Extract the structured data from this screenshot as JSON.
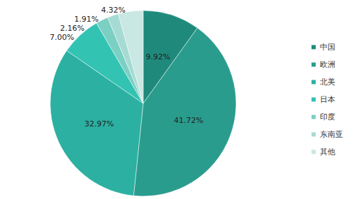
{
  "chart_data": {
    "type": "pie",
    "categories": [
      "中国",
      "欧洲",
      "北美",
      "日本",
      "印度",
      "东南亚",
      "其他"
    ],
    "values": [
      9.92,
      41.72,
      32.97,
      7.0,
      2.16,
      1.91,
      4.32
    ],
    "value_labels": [
      "9.92%",
      "41.72%",
      "32.97%",
      "7.00%",
      "2.16%",
      "1.91%",
      "4.32%"
    ],
    "colors": [
      "#1f8a7c",
      "#2a9c8e",
      "#2bb0a1",
      "#33c3b3",
      "#7ccfc3",
      "#a5dbd3",
      "#c9e7e3"
    ],
    "data_labels": true,
    "legend": "right"
  }
}
